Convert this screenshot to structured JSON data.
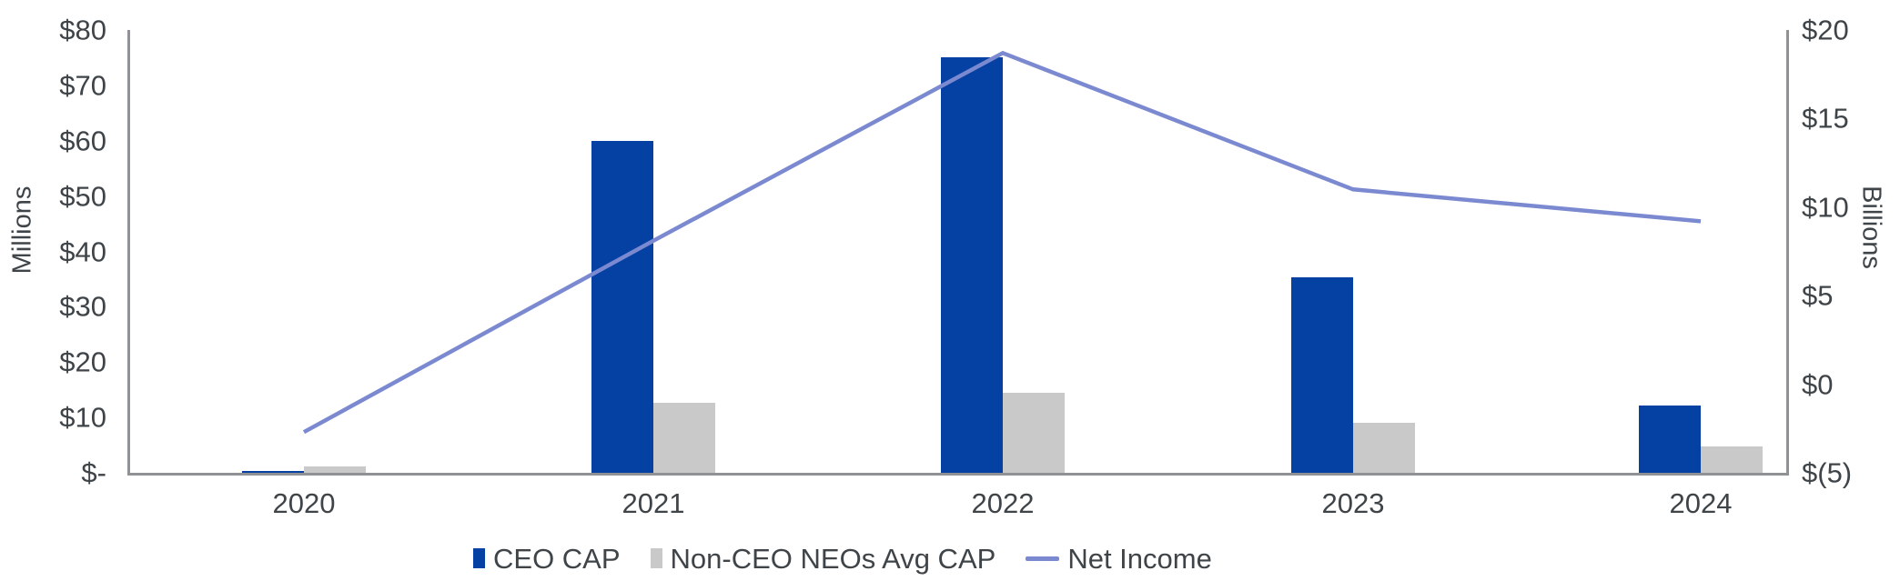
{
  "chart_data": {
    "type": "combo-bar-line",
    "title": "",
    "categories": [
      "2020",
      "2021",
      "2022",
      "2023",
      "2024"
    ],
    "series": [
      {
        "name": "CEO CAP",
        "type": "bar",
        "axis": "left",
        "units": "USD millions",
        "color": "#0541A3",
        "values": [
          0.4,
          60,
          75,
          35.4,
          12.2
        ]
      },
      {
        "name": "Non-CEO NEOs Avg CAP",
        "type": "bar",
        "axis": "left",
        "units": "USD millions",
        "color": "#C9C9C9",
        "values": [
          1.2,
          12.7,
          14.4,
          9,
          4.8
        ]
      },
      {
        "name": "Net Income",
        "type": "line",
        "axis": "right",
        "units": "USD billions",
        "color": "#7B89D0",
        "values": [
          -2.7,
          8.1,
          18.7,
          11,
          9.2
        ]
      }
    ],
    "left_axis": {
      "title": "Millions",
      "min": 0,
      "max": 80,
      "ticks": [
        {
          "label": "$-",
          "value": 0
        },
        {
          "label": "$10",
          "value": 10
        },
        {
          "label": "$20",
          "value": 20
        },
        {
          "label": "$30",
          "value": 30
        },
        {
          "label": "$40",
          "value": 40
        },
        {
          "label": "$50",
          "value": 50
        },
        {
          "label": "$60",
          "value": 60
        },
        {
          "label": "$70",
          "value": 70
        },
        {
          "label": "$80",
          "value": 80
        }
      ]
    },
    "right_axis": {
      "title": "Billions",
      "min": -5,
      "max": 20,
      "ticks": [
        {
          "label": "$(5)",
          "value": -5
        },
        {
          "label": "$0",
          "value": 0
        },
        {
          "label": "$5",
          "value": 5
        },
        {
          "label": "$10",
          "value": 10
        },
        {
          "label": "$15",
          "value": 15
        },
        {
          "label": "$20",
          "value": 20
        }
      ]
    },
    "x_axis": {
      "labels": [
        "2020",
        "2021",
        "2022",
        "2023",
        "2024"
      ]
    },
    "legend": {
      "position": "bottom",
      "entries": [
        "CEO CAP",
        "Non-CEO NEOs Avg CAP",
        "Net Income"
      ]
    },
    "grid": false,
    "colors": {
      "axis_line": "#8F9194",
      "text": "#3F4449",
      "background": "#FFFFFF"
    }
  }
}
